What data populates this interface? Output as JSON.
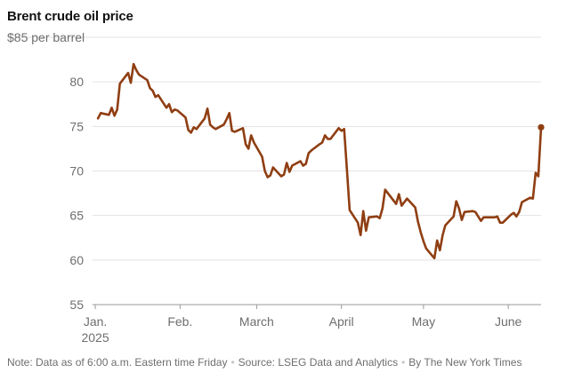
{
  "chart_data": {
    "type": "line",
    "title": "Brent crude oil price",
    "y_unit_label": "$85 per barrel",
    "ylim": [
      55,
      85
    ],
    "yticks": [
      55,
      60,
      65,
      70,
      75,
      80
    ],
    "xlim": [
      "2024-12-31",
      "2025-06-13"
    ],
    "xticks": [
      {
        "date": "2025-01-01",
        "label": "Jan.",
        "sublabel": "2025"
      },
      {
        "date": "2025-02-01",
        "label": "Feb."
      },
      {
        "date": "2025-03-01",
        "label": "March"
      },
      {
        "date": "2025-04-01",
        "label": "April"
      },
      {
        "date": "2025-05-01",
        "label": "May"
      },
      {
        "date": "2025-06-01",
        "label": "June"
      }
    ],
    "grid": true,
    "line_color": "#8f3e12",
    "series": [
      {
        "x": [
          "2025-01-02",
          "2025-01-03",
          "2025-01-06",
          "2025-01-07",
          "2025-01-08",
          "2025-01-09",
          "2025-01-10",
          "2025-01-13",
          "2025-01-14",
          "2025-01-15",
          "2025-01-16",
          "2025-01-17",
          "2025-01-20",
          "2025-01-21",
          "2025-01-22",
          "2025-01-23",
          "2025-01-24",
          "2025-01-27",
          "2025-01-28",
          "2025-01-29",
          "2025-01-30",
          "2025-01-31",
          "2025-02-03",
          "2025-02-04",
          "2025-02-05",
          "2025-02-06",
          "2025-02-07",
          "2025-02-10",
          "2025-02-11",
          "2025-02-12",
          "2025-02-13",
          "2025-02-14",
          "2025-02-17",
          "2025-02-18",
          "2025-02-19",
          "2025-02-20",
          "2025-02-21",
          "2025-02-24",
          "2025-02-25",
          "2025-02-26",
          "2025-02-27",
          "2025-02-28",
          "2025-03-03",
          "2025-03-04",
          "2025-03-05",
          "2025-03-06",
          "2025-03-07",
          "2025-03-10",
          "2025-03-11",
          "2025-03-12",
          "2025-03-13",
          "2025-03-14",
          "2025-03-17",
          "2025-03-18",
          "2025-03-19",
          "2025-03-20",
          "2025-03-21",
          "2025-03-24",
          "2025-03-25",
          "2025-03-26",
          "2025-03-27",
          "2025-03-28",
          "2025-03-31",
          "2025-04-01",
          "2025-04-02",
          "2025-04-03",
          "2025-04-04",
          "2025-04-07",
          "2025-04-08",
          "2025-04-09",
          "2025-04-10",
          "2025-04-11",
          "2025-04-14",
          "2025-04-15",
          "2025-04-16",
          "2025-04-17",
          "2025-04-21",
          "2025-04-22",
          "2025-04-23",
          "2025-04-24",
          "2025-04-25",
          "2025-04-28",
          "2025-04-29",
          "2025-04-30",
          "2025-05-01",
          "2025-05-02",
          "2025-05-05",
          "2025-05-06",
          "2025-05-07",
          "2025-05-08",
          "2025-05-09",
          "2025-05-12",
          "2025-05-13",
          "2025-05-14",
          "2025-05-15",
          "2025-05-16",
          "2025-05-19",
          "2025-05-20",
          "2025-05-21",
          "2025-05-22",
          "2025-05-23",
          "2025-05-27",
          "2025-05-28",
          "2025-05-29",
          "2025-05-30",
          "2025-06-02",
          "2025-06-03",
          "2025-06-04",
          "2025-06-05",
          "2025-06-06",
          "2025-06-09",
          "2025-06-10",
          "2025-06-11",
          "2025-06-12",
          "2025-06-13"
        ],
        "y": [
          75.9,
          76.5,
          76.3,
          77.1,
          76.2,
          76.9,
          79.8,
          81.0,
          79.9,
          82.0,
          81.3,
          80.8,
          80.2,
          79.3,
          79.0,
          78.3,
          78.5,
          77.1,
          77.5,
          76.6,
          76.9,
          76.8,
          76.0,
          74.6,
          74.3,
          74.9,
          74.7,
          75.9,
          77.0,
          75.2,
          74.9,
          74.7,
          75.2,
          75.8,
          76.5,
          74.5,
          74.4,
          74.8,
          73.0,
          72.5,
          74.0,
          73.2,
          71.6,
          70.0,
          69.3,
          69.5,
          70.4,
          69.4,
          69.6,
          70.9,
          69.9,
          70.6,
          71.1,
          70.6,
          70.8,
          72.0,
          72.3,
          73.0,
          73.2,
          74.0,
          73.6,
          73.6,
          74.8,
          74.5,
          74.7,
          70.2,
          65.6,
          64.2,
          62.8,
          65.5,
          63.3,
          64.8,
          64.9,
          64.7,
          65.8,
          67.9,
          66.3,
          67.4,
          66.1,
          66.5,
          66.9,
          65.9,
          64.3,
          63.1,
          62.1,
          61.3,
          60.2,
          62.2,
          61.1,
          62.8,
          63.9,
          64.9,
          66.6,
          65.8,
          64.5,
          65.4,
          65.5,
          65.4,
          64.9,
          64.4,
          64.8,
          64.8,
          64.9,
          64.2,
          64.2,
          65.1,
          65.3,
          64.9,
          65.4,
          66.5,
          67.0,
          66.9,
          69.8,
          69.4,
          74.9
        ]
      }
    ]
  },
  "footer": {
    "note": "Note: Data as of 6:00 a.m. Eastern time Friday",
    "source": "Source: LSEG Data and Analytics",
    "credit": "By The New York Times"
  }
}
